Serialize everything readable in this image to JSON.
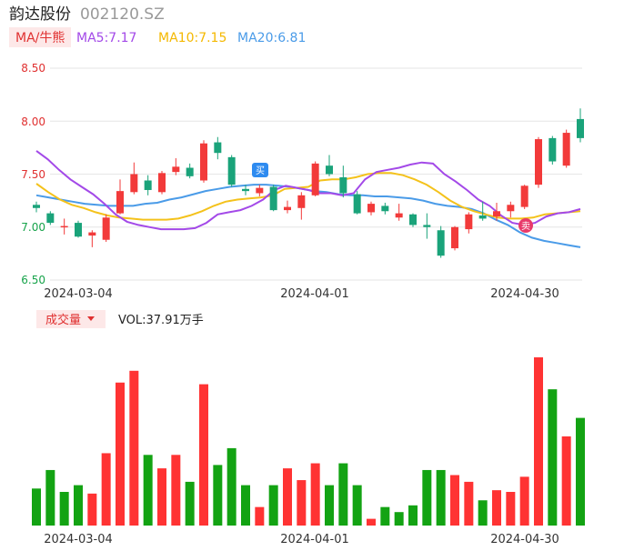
{
  "header": {
    "name": "韵达股份",
    "code": "002120.SZ"
  },
  "ma_bar": {
    "selector_label": "MA/牛熊",
    "ma5": "MA5:7.17",
    "ma10": "MA10:7.15",
    "ma20": "MA20:6.81"
  },
  "volume_bar": {
    "selector_label": "成交量",
    "vol_text": "VOL:37.91万手"
  },
  "markers": {
    "buy": "买",
    "sell": "卖"
  },
  "colors": {
    "up": "#f23a3a",
    "down": "#1aa37a",
    "vol_up": "#ff3333",
    "vol_down": "#13a313",
    "ma5": "#a349e8",
    "ma10": "#f4c21b",
    "ma20": "#4a9be8",
    "grid": "#e6e6e6"
  },
  "chart_data": [
    {
      "type": "candlestick",
      "y_ticks": [
        "8.50",
        "8.00",
        "7.50",
        "7.00",
        "6.50"
      ],
      "ylim": [
        6.5,
        8.5
      ],
      "x_labels": [
        "2024-03-04",
        "2024-04-01",
        "2024-04-30"
      ],
      "candles": [
        {
          "o": 7.21,
          "c": 7.18,
          "h": 7.24,
          "l": 7.14
        },
        {
          "o": 7.13,
          "c": 7.04,
          "h": 7.15,
          "l": 7.02
        },
        {
          "o": 7.01,
          "c": 7.01,
          "h": 7.08,
          "l": 6.93
        },
        {
          "o": 7.04,
          "c": 6.91,
          "h": 7.06,
          "l": 6.9
        },
        {
          "o": 6.92,
          "c": 6.95,
          "h": 6.97,
          "l": 6.81
        },
        {
          "o": 6.88,
          "c": 7.09,
          "h": 7.12,
          "l": 6.86
        },
        {
          "o": 7.13,
          "c": 7.34,
          "h": 7.45,
          "l": 7.12
        },
        {
          "o": 7.33,
          "c": 7.5,
          "h": 7.61,
          "l": 7.31
        },
        {
          "o": 7.44,
          "c": 7.35,
          "h": 7.49,
          "l": 7.3
        },
        {
          "o": 7.33,
          "c": 7.51,
          "h": 7.53,
          "l": 7.31
        },
        {
          "o": 7.52,
          "c": 7.57,
          "h": 7.65,
          "l": 7.49
        },
        {
          "o": 7.56,
          "c": 7.48,
          "h": 7.6,
          "l": 7.46
        },
        {
          "o": 7.44,
          "c": 7.79,
          "h": 7.82,
          "l": 7.42
        },
        {
          "o": 7.8,
          "c": 7.7,
          "h": 7.85,
          "l": 7.64
        },
        {
          "o": 7.66,
          "c": 7.4,
          "h": 7.68,
          "l": 7.38
        },
        {
          "o": 7.36,
          "c": 7.34,
          "h": 7.4,
          "l": 7.3
        },
        {
          "o": 7.32,
          "c": 7.37,
          "h": 7.4,
          "l": 7.29
        },
        {
          "o": 7.38,
          "c": 7.16,
          "h": 7.4,
          "l": 7.15
        },
        {
          "o": 7.16,
          "c": 7.19,
          "h": 7.25,
          "l": 7.13
        },
        {
          "o": 7.18,
          "c": 7.3,
          "h": 7.33,
          "l": 7.07
        },
        {
          "o": 7.3,
          "c": 7.6,
          "h": 7.62,
          "l": 7.29
        },
        {
          "o": 7.58,
          "c": 7.5,
          "h": 7.68,
          "l": 7.48
        },
        {
          "o": 7.47,
          "c": 7.32,
          "h": 7.58,
          "l": 7.28
        },
        {
          "o": 7.31,
          "c": 7.13,
          "h": 7.34,
          "l": 7.12
        },
        {
          "o": 7.14,
          "c": 7.22,
          "h": 7.24,
          "l": 7.11
        },
        {
          "o": 7.2,
          "c": 7.15,
          "h": 7.23,
          "l": 7.12
        },
        {
          "o": 7.09,
          "c": 7.13,
          "h": 7.22,
          "l": 7.06
        },
        {
          "o": 7.12,
          "c": 7.02,
          "h": 7.13,
          "l": 7.0
        },
        {
          "o": 7.02,
          "c": 7.0,
          "h": 7.13,
          "l": 6.89
        },
        {
          "o": 6.97,
          "c": 6.73,
          "h": 7.01,
          "l": 6.71
        },
        {
          "o": 6.8,
          "c": 7.0,
          "h": 7.01,
          "l": 6.78
        },
        {
          "o": 6.98,
          "c": 7.12,
          "h": 7.14,
          "l": 6.94
        },
        {
          "o": 7.11,
          "c": 7.08,
          "h": 7.24,
          "l": 7.06
        },
        {
          "o": 7.1,
          "c": 7.15,
          "h": 7.23,
          "l": 7.06
        },
        {
          "o": 7.15,
          "c": 7.21,
          "h": 7.24,
          "l": 7.09
        },
        {
          "o": 7.19,
          "c": 7.39,
          "h": 7.4,
          "l": 7.17
        },
        {
          "o": 7.4,
          "c": 7.83,
          "h": 7.85,
          "l": 7.37
        },
        {
          "o": 7.84,
          "c": 7.62,
          "h": 7.86,
          "l": 7.59
        },
        {
          "o": 7.58,
          "c": 7.89,
          "h": 7.92,
          "l": 7.56
        },
        {
          "o": 8.02,
          "c": 7.84,
          "h": 8.12,
          "l": 7.8
        }
      ],
      "ma5": [
        7.72,
        7.64,
        7.54,
        7.45,
        7.38,
        7.31,
        7.22,
        7.12,
        7.05,
        7.02,
        7.0,
        6.98,
        6.98,
        6.98,
        6.99,
        7.04,
        7.12,
        7.14,
        7.16,
        7.2,
        7.26,
        7.35,
        7.39,
        7.37,
        7.35,
        7.32,
        7.32,
        7.3,
        7.32,
        7.45,
        7.52,
        7.54,
        7.56,
        7.59,
        7.61,
        7.6,
        7.5,
        7.43,
        7.35,
        7.26,
        7.2,
        7.11,
        7.04,
        7.02,
        7.04,
        7.1,
        7.13,
        7.14,
        7.17
      ],
      "ma10": [
        7.41,
        7.33,
        7.26,
        7.21,
        7.18,
        7.14,
        7.11,
        7.09,
        7.08,
        7.07,
        7.07,
        7.07,
        7.08,
        7.11,
        7.15,
        7.2,
        7.24,
        7.26,
        7.27,
        7.28,
        7.3,
        7.36,
        7.37,
        7.38,
        7.44,
        7.45,
        7.45,
        7.47,
        7.5,
        7.51,
        7.51,
        7.49,
        7.45,
        7.4,
        7.33,
        7.25,
        7.19,
        7.15,
        7.12,
        7.09,
        7.08,
        7.08,
        7.09,
        7.12,
        7.13,
        7.14,
        7.15
      ],
      "ma20": [
        7.3,
        7.28,
        7.26,
        7.24,
        7.22,
        7.21,
        7.2,
        7.2,
        7.2,
        7.22,
        7.23,
        7.26,
        7.28,
        7.31,
        7.34,
        7.36,
        7.38,
        7.39,
        7.4,
        7.4,
        7.39,
        7.38,
        7.36,
        7.34,
        7.33,
        7.31,
        7.3,
        7.3,
        7.29,
        7.29,
        7.28,
        7.27,
        7.25,
        7.22,
        7.2,
        7.19,
        7.17,
        7.13,
        7.07,
        7.02,
        6.95,
        6.9,
        6.87,
        6.85,
        6.83,
        6.81
      ]
    },
    {
      "type": "bar",
      "title": "",
      "values": [
        22,
        33,
        20,
        24,
        19,
        43,
        85,
        92,
        42,
        34,
        42,
        26,
        84,
        36,
        46,
        24,
        11,
        24,
        34,
        27,
        37,
        24,
        37,
        24,
        4,
        11,
        8,
        12,
        33,
        33,
        30,
        26,
        15,
        21,
        20,
        29,
        100,
        81,
        53,
        64
      ],
      "directions": [
        "down",
        "down",
        "down",
        "down",
        "up",
        "up",
        "up",
        "up",
        "down",
        "up",
        "up",
        "down",
        "up",
        "down",
        "down",
        "down",
        "up",
        "down",
        "up",
        "up",
        "up",
        "down",
        "down",
        "down",
        "up",
        "down",
        "down",
        "down",
        "down",
        "down",
        "up",
        "up",
        "down",
        "up",
        "up",
        "up",
        "up",
        "down",
        "up",
        "down"
      ]
    }
  ]
}
